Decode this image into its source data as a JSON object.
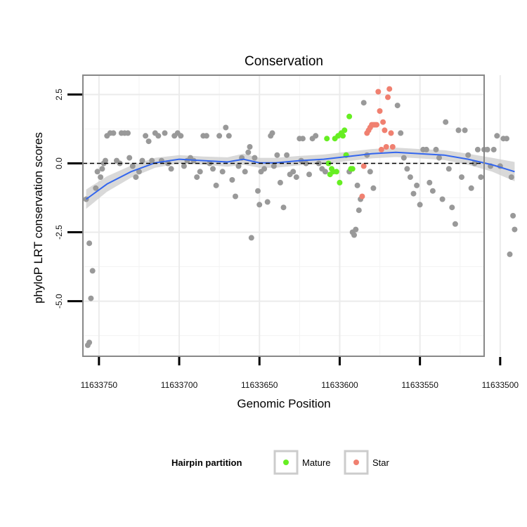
{
  "chart_data": {
    "type": "scatter",
    "title": "Conservation",
    "xlabel": "Genomic Position",
    "ylabel": "phyloP LRT conservation scores",
    "x_reversed": true,
    "xlim": [
      11633510,
      11633760
    ],
    "ylim": [
      -7.0,
      3.2
    ],
    "x_ticks": [
      11633750,
      11633700,
      11633650,
      11633600,
      11633550,
      11633500
    ],
    "x_tick_labels": [
      "11633750",
      "11633700",
      "11633650",
      "11633600",
      "11633550",
      "11633500"
    ],
    "y_ticks": [
      2.5,
      0.0,
      -2.5,
      -5.0
    ],
    "y_tick_labels": [
      "2.5",
      "0.0",
      "-2.5",
      "-5.0"
    ],
    "hline": 0.0,
    "legend": {
      "title": "Hairpin partition",
      "position": "bottom",
      "entries": [
        {
          "label": "Mature",
          "color": "#66ee22"
        },
        {
          "label": "Star",
          "color": "#f08070"
        }
      ]
    },
    "colors": {
      "other": "#999999",
      "Mature": "#66ee22",
      "Star": "#f08070",
      "smooth": "#3366ee",
      "ribbon": "#cccccc"
    },
    "series": [
      {
        "name": "Other",
        "points": [
          [
            11633758,
            -1.3
          ],
          [
            11633756,
            -2.9
          ],
          [
            11633754,
            -3.9
          ],
          [
            11633755,
            -4.9
          ],
          [
            11633757,
            -6.6
          ],
          [
            11633756,
            -6.5
          ],
          [
            11633752,
            -0.9
          ],
          [
            11633751,
            -0.3
          ],
          [
            11633749,
            -0.5
          ],
          [
            11633748,
            -0.2
          ],
          [
            11633747,
            0.0
          ],
          [
            11633746,
            0.1
          ],
          [
            11633745,
            1.0
          ],
          [
            11633743,
            1.1
          ],
          [
            11633741,
            1.1
          ],
          [
            11633739,
            0.1
          ],
          [
            11633737,
            0.0
          ],
          [
            11633736,
            1.1
          ],
          [
            11633734,
            1.1
          ],
          [
            11633732,
            1.1
          ],
          [
            11633731,
            0.2
          ],
          [
            11633729,
            -0.1
          ],
          [
            11633727,
            -0.5
          ],
          [
            11633725,
            -0.3
          ],
          [
            11633723,
            0.1
          ],
          [
            11633721,
            1.0
          ],
          [
            11633719,
            0.8
          ],
          [
            11633717,
            0.1
          ],
          [
            11633715,
            1.1
          ],
          [
            11633713,
            1.0
          ],
          [
            11633711,
            0.1
          ],
          [
            11633709,
            1.1
          ],
          [
            11633707,
            0.0
          ],
          [
            11633705,
            -0.2
          ],
          [
            11633703,
            1.0
          ],
          [
            11633701,
            1.1
          ],
          [
            11633699,
            1.0
          ],
          [
            11633697,
            -0.1
          ],
          [
            11633695,
            0.1
          ],
          [
            11633693,
            0.2
          ],
          [
            11633691,
            0.1
          ],
          [
            11633689,
            -0.5
          ],
          [
            11633687,
            -0.3
          ],
          [
            11633685,
            1.0
          ],
          [
            11633683,
            1.0
          ],
          [
            11633681,
            0.0
          ],
          [
            11633679,
            -0.2
          ],
          [
            11633677,
            -0.8
          ],
          [
            11633675,
            1.0
          ],
          [
            11633673,
            -0.3
          ],
          [
            11633671,
            1.3
          ],
          [
            11633669,
            1.0
          ],
          [
            11633667,
            -0.6
          ],
          [
            11633665,
            -1.2
          ],
          [
            11633663,
            -0.1
          ],
          [
            11633661,
            0.2
          ],
          [
            11633659,
            -0.3
          ],
          [
            11633657,
            0.4
          ],
          [
            11633656,
            0.6
          ],
          [
            11633655,
            -2.7
          ],
          [
            11633653,
            0.2
          ],
          [
            11633651,
            -1.0
          ],
          [
            11633650,
            -1.5
          ],
          [
            11633649,
            -0.3
          ],
          [
            11633647,
            -0.2
          ],
          [
            11633645,
            -1.4
          ],
          [
            11633643,
            1.0
          ],
          [
            11633642,
            1.1
          ],
          [
            11633641,
            -0.1
          ],
          [
            11633639,
            0.3
          ],
          [
            11633637,
            -0.7
          ],
          [
            11633635,
            -1.6
          ],
          [
            11633633,
            0.3
          ],
          [
            11633631,
            -0.4
          ],
          [
            11633629,
            -0.3
          ],
          [
            11633627,
            -0.5
          ],
          [
            11633625,
            0.9
          ],
          [
            11633624,
            0.1
          ],
          [
            11633623,
            0.9
          ],
          [
            11633621,
            0.0
          ],
          [
            11633619,
            -0.4
          ],
          [
            11633617,
            0.9
          ],
          [
            11633615,
            1.0
          ],
          [
            11633613,
            0.0
          ],
          [
            11633611,
            -0.2
          ],
          [
            11633609,
            -0.3
          ],
          [
            11633596,
            0.3
          ],
          [
            11633594,
            -0.3
          ],
          [
            11633592,
            -2.5
          ],
          [
            11633591,
            -2.6
          ],
          [
            11633590,
            -2.4
          ],
          [
            11633589,
            -0.8
          ],
          [
            11633588,
            -1.7
          ],
          [
            11633587,
            -1.3
          ],
          [
            11633585,
            2.2
          ],
          [
            11633583,
            0.3
          ],
          [
            11633581,
            -0.3
          ],
          [
            11633579,
            -0.9
          ],
          [
            11633564,
            2.1
          ],
          [
            11633562,
            1.1
          ],
          [
            11633560,
            0.2
          ],
          [
            11633558,
            -0.2
          ],
          [
            11633556,
            -0.5
          ],
          [
            11633554,
            -1.1
          ],
          [
            11633552,
            -0.8
          ],
          [
            11633550,
            -1.5
          ],
          [
            11633548,
            0.5
          ],
          [
            11633546,
            0.5
          ],
          [
            11633544,
            -0.7
          ],
          [
            11633542,
            -1.0
          ],
          [
            11633540,
            0.5
          ],
          [
            11633538,
            0.2
          ],
          [
            11633536,
            -1.3
          ],
          [
            11633534,
            1.5
          ],
          [
            11633532,
            -0.2
          ],
          [
            11633530,
            -1.6
          ],
          [
            11633528,
            -2.2
          ],
          [
            11633526,
            1.2
          ],
          [
            11633524,
            -0.5
          ],
          [
            11633522,
            1.2
          ],
          [
            11633520,
            0.3
          ],
          [
            11633518,
            -0.9
          ],
          [
            11633516,
            0.0
          ],
          [
            11633514,
            0.5
          ],
          [
            11633512,
            -0.5
          ],
          [
            11633510,
            0.5
          ],
          [
            11633508,
            0.5
          ],
          [
            11633506,
            -0.1
          ],
          [
            11633504,
            0.5
          ],
          [
            11633502,
            1.0
          ],
          [
            11633500,
            -0.1
          ],
          [
            11633498,
            0.9
          ],
          [
            11633496,
            0.9
          ],
          [
            11633494,
            -3.3
          ],
          [
            11633492,
            -1.9
          ],
          [
            11633491,
            -2.4
          ],
          [
            11633493,
            -0.5
          ]
        ]
      },
      {
        "name": "Mature",
        "points": [
          [
            11633608,
            0.9
          ],
          [
            11633607,
            0.0
          ],
          [
            11633606,
            -0.4
          ],
          [
            11633605,
            -0.2
          ],
          [
            11633603,
            0.9
          ],
          [
            11633602,
            -0.3
          ],
          [
            11633601,
            1.0
          ],
          [
            11633600,
            -0.7
          ],
          [
            11633599,
            1.1
          ],
          [
            11633597,
            1.2
          ],
          [
            11633596,
            0.3
          ],
          [
            11633594,
            1.7
          ],
          [
            11633593,
            -0.2
          ],
          [
            11633592,
            -0.2
          ],
          [
            11633604,
            -0.3
          ],
          [
            11633598,
            1.0
          ]
        ]
      },
      {
        "name": "Star",
        "points": [
          [
            11633586,
            -1.2
          ],
          [
            11633585,
            -0.1
          ],
          [
            11633583,
            1.1
          ],
          [
            11633581,
            1.3
          ],
          [
            11633580,
            1.4
          ],
          [
            11633579,
            1.4
          ],
          [
            11633578,
            1.4
          ],
          [
            11633577,
            1.4
          ],
          [
            11633576,
            2.6
          ],
          [
            11633575,
            1.9
          ],
          [
            11633574,
            0.5
          ],
          [
            11633573,
            1.5
          ],
          [
            11633572,
            1.2
          ],
          [
            11633571,
            0.6
          ],
          [
            11633570,
            2.4
          ],
          [
            11633569,
            2.7
          ],
          [
            11633568,
            1.1
          ],
          [
            11633567,
            0.6
          ],
          [
            11633582,
            1.2
          ]
        ]
      }
    ],
    "smooth": [
      [
        11633758,
        -1.3
      ],
      [
        11633745,
        -0.75
      ],
      [
        11633730,
        -0.3
      ],
      [
        11633715,
        0.02
      ],
      [
        11633700,
        0.15
      ],
      [
        11633685,
        0.1
      ],
      [
        11633670,
        0.05
      ],
      [
        11633660,
        0.15
      ],
      [
        11633650,
        0.02
      ],
      [
        11633640,
        0.02
      ],
      [
        11633625,
        0.1
      ],
      [
        11633610,
        0.15
      ],
      [
        11633595,
        0.25
      ],
      [
        11633580,
        0.35
      ],
      [
        11633565,
        0.4
      ],
      [
        11633550,
        0.35
      ],
      [
        11633535,
        0.3
      ],
      [
        11633520,
        0.15
      ],
      [
        11633505,
        -0.05
      ],
      [
        11633491,
        -0.3
      ]
    ],
    "ribbon_halfwidth": [
      0.35,
      0.28,
      0.22,
      0.18,
      0.15,
      0.15,
      0.17,
      0.2,
      0.18,
      0.18,
      0.17,
      0.17,
      0.17,
      0.17,
      0.17,
      0.17,
      0.18,
      0.2,
      0.25,
      0.35
    ]
  }
}
